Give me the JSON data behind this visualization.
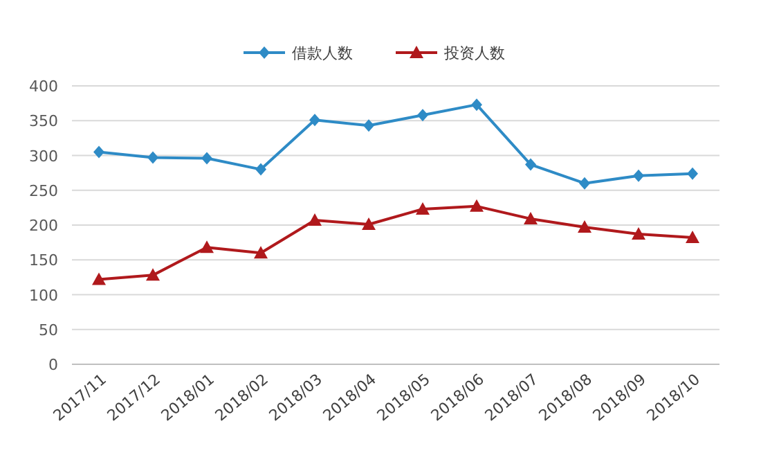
{
  "chart_data": {
    "type": "line",
    "categories": [
      "2017/11",
      "2017/12",
      "2018/01",
      "2018/02",
      "2018/03",
      "2018/04",
      "2018/05",
      "2018/06",
      "2018/07",
      "2018/08",
      "2018/09",
      "2018/10"
    ],
    "series": [
      {
        "name": "借款人数",
        "color": "#2e8bc6",
        "marker": "diamond",
        "values": [
          305,
          297,
          296,
          280,
          351,
          343,
          358,
          373,
          287,
          260,
          271,
          274
        ]
      },
      {
        "name": "投资人数",
        "color": "#b0191c",
        "marker": "triangle",
        "values": [
          122,
          128,
          168,
          160,
          207,
          201,
          223,
          227,
          209,
          197,
          187,
          182
        ]
      }
    ],
    "ylim": [
      0,
      400
    ],
    "yticks": [
      0,
      50,
      100,
      150,
      200,
      250,
      300,
      350,
      400
    ],
    "grid": "y",
    "legend": "top"
  }
}
